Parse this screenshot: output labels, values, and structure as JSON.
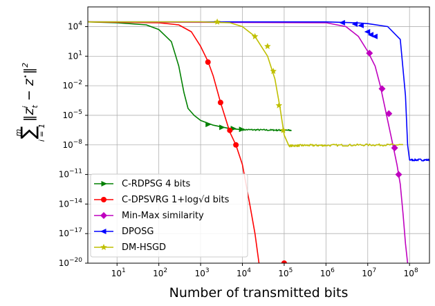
{
  "chart_data": {
    "type": "line",
    "title": "",
    "xlabel": "Number of transmitted bits",
    "ylabel": "sum_{i=1}^{m} ||z_t^i - z*||^2",
    "xscale": "log",
    "yscale": "log",
    "xlim": [
      2.0,
      300000000
    ],
    "ylim": [
      1e-20,
      1000000.0
    ],
    "grid": true,
    "legend_position": "lower-left",
    "x_ticks": [
      {
        "value": 10,
        "label": "10^1"
      },
      {
        "value": 100,
        "label": "10^2"
      },
      {
        "value": 1000,
        "label": "10^3"
      },
      {
        "value": 10000,
        "label": "10^4"
      },
      {
        "value": 100000,
        "label": "10^5"
      },
      {
        "value": 1000000,
        "label": "10^6"
      },
      {
        "value": 10000000,
        "label": "10^7"
      },
      {
        "value": 100000000,
        "label": "10^8"
      }
    ],
    "y_ticks": [
      {
        "value": 10000.0,
        "label": "10^4"
      },
      {
        "value": 10.0,
        "label": "10^1"
      },
      {
        "value": 0.01,
        "label": "10^-2"
      },
      {
        "value": 1e-05,
        "label": "10^-5"
      },
      {
        "value": 1e-08,
        "label": "10^-8"
      },
      {
        "value": 1e-11,
        "label": "10^-11"
      },
      {
        "value": 1e-14,
        "label": "10^-14"
      },
      {
        "value": 1e-17,
        "label": "10^-17"
      },
      {
        "value": 1e-20,
        "label": "10^-20"
      }
    ],
    "series": [
      {
        "name": "C-RDPSG 4 bits",
        "color": "#008000",
        "marker": "triangle-right",
        "noisy_from": 9000,
        "noise": 0.15,
        "points": [
          [
            2,
            30000.0
          ],
          [
            10,
            25000.0
          ],
          [
            50,
            15000.0
          ],
          [
            100,
            5000.0
          ],
          [
            200,
            300.0
          ],
          [
            300,
            1.0
          ],
          [
            400,
            0.002
          ],
          [
            500,
            5e-05
          ],
          [
            700,
            1e-05
          ],
          [
            1000,
            3e-06
          ],
          [
            2000,
            1e-06
          ],
          [
            5000,
            4.5e-07
          ],
          [
            10000,
            3.5e-07
          ],
          [
            50000,
            3.2e-07
          ],
          [
            150000,
            3e-07
          ]
        ],
        "markers": [
          [
            1500,
            1.2e-06
          ],
          [
            3200,
            6e-07
          ],
          [
            6000,
            4.5e-07
          ],
          [
            9500,
            3.8e-07
          ]
        ]
      },
      {
        "name": "C-DPSVRG 1+log√d bits",
        "color": "#ff0000",
        "marker": "circle",
        "points": [
          [
            2,
            30000.0
          ],
          [
            100,
            25000.0
          ],
          [
            300,
            15000.0
          ],
          [
            600,
            3000.0
          ],
          [
            1000,
            100.0
          ],
          [
            1500,
            3.0
          ],
          [
            2000,
            0.1
          ],
          [
            3000,
            0.0002
          ],
          [
            5000,
            2e-07
          ],
          [
            7000,
            1e-08
          ],
          [
            10000,
            1e-10
          ],
          [
            15000,
            1e-14
          ],
          [
            20000,
            1e-17
          ],
          [
            25000,
            1e-20
          ]
        ],
        "markers": [
          [
            1500,
            2.5
          ],
          [
            3000,
            0.0002
          ],
          [
            5000,
            3e-07
          ],
          [
            7000,
            1e-08
          ],
          [
            100000,
            1e-20
          ]
        ]
      },
      {
        "name": "Min-Max similarity",
        "color": "#bf00bf",
        "marker": "diamond",
        "points": [
          [
            2,
            30000.0
          ],
          [
            1000000,
            25000.0
          ],
          [
            3000000,
            10000.0
          ],
          [
            6000000,
            1000.0
          ],
          [
            10000000,
            30.0
          ],
          [
            15000000,
            1.0
          ],
          [
            20000000,
            0.01
          ],
          [
            30000000,
            3e-06
          ],
          [
            40000000,
            1e-08
          ],
          [
            50000000,
            1e-10
          ],
          [
            60000000,
            1e-12
          ],
          [
            70000000,
            1e-15
          ],
          [
            80000000,
            1e-18
          ],
          [
            90000000,
            1e-20
          ]
        ],
        "markers": [
          [
            11000000,
            20.0
          ],
          [
            22000000,
            0.005
          ],
          [
            32000000,
            1.5e-05
          ],
          [
            44000000,
            5e-09
          ],
          [
            55000000,
            1e-11
          ]
        ]
      },
      {
        "name": "DPOSG",
        "color": "#0000ff",
        "marker": "triangle-left",
        "noisy_from": 100000000,
        "noise": 0.2,
        "points": [
          [
            2,
            30000.0
          ],
          [
            1000000,
            30000.0
          ],
          [
            5000000,
            25000.0
          ],
          [
            10000000,
            20000.0
          ],
          [
            30000000,
            10000.0
          ],
          [
            60000000,
            500.0
          ],
          [
            80000000,
            0.001
          ],
          [
            90000000,
            1e-08
          ],
          [
            100000000,
            3e-10
          ],
          [
            300000000,
            3e-10
          ]
        ],
        "markers": [
          [
            2500000,
            25000.0
          ],
          [
            5000000,
            18000.0
          ],
          [
            7000000,
            13000.0
          ],
          [
            10000000,
            3000.0
          ],
          [
            12000000,
            1500.0
          ],
          [
            15000000,
            1000.0
          ]
        ]
      },
      {
        "name": "DM-HSGD",
        "color": "#bfbf00",
        "marker": "star",
        "noisy_from": 110000,
        "noise": 0.2,
        "points": [
          [
            2,
            30000.0
          ],
          [
            1000,
            30000.0
          ],
          [
            5000,
            25000.0
          ],
          [
            10000,
            10000.0
          ],
          [
            20000,
            1000.0
          ],
          [
            40000,
            10.0
          ],
          [
            60000,
            0.05
          ],
          [
            80000,
            5e-05
          ],
          [
            100000,
            1e-07
          ],
          [
            130000,
            8e-09
          ],
          [
            300000,
            9e-09
          ],
          [
            1000000,
            9e-09
          ],
          [
            10000000,
            1e-08
          ],
          [
            70000000,
            1e-08
          ]
        ],
        "markers": [
          [
            2500,
            30000.0
          ],
          [
            20000,
            1000.0
          ],
          [
            40000,
            100.0
          ],
          [
            55000,
            0.3
          ],
          [
            75000,
            0.0001
          ],
          [
            95000,
            3e-07
          ]
        ]
      }
    ]
  }
}
